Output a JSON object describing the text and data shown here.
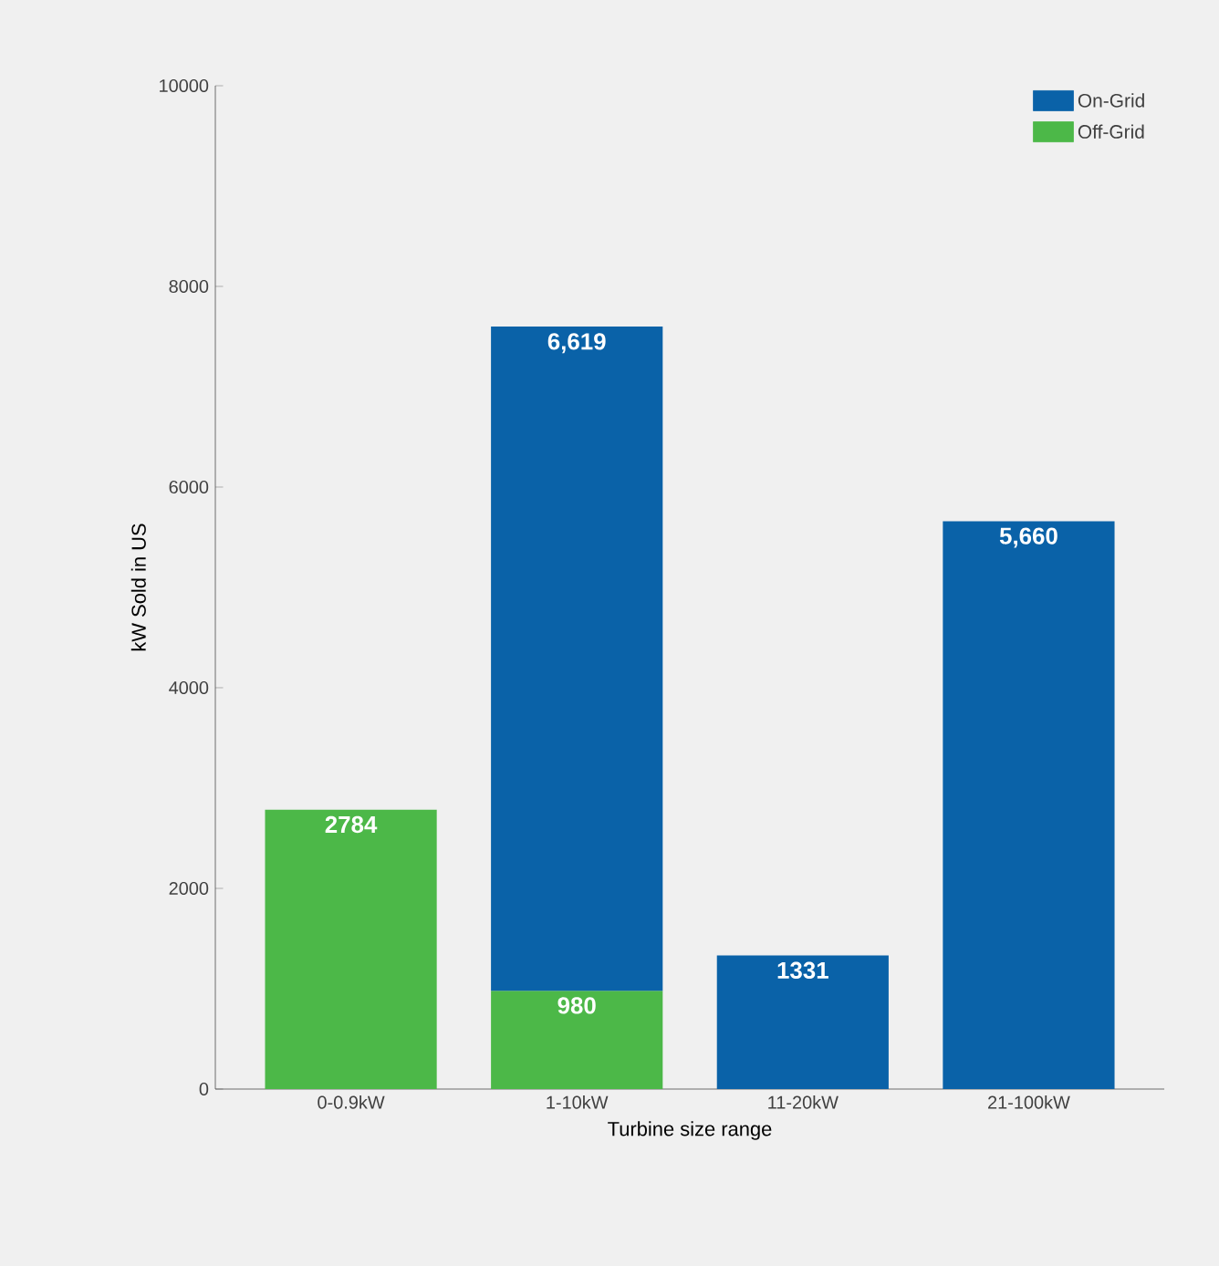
{
  "chart_data": {
    "type": "bar",
    "stacked": true,
    "categories": [
      "0-0.9kW",
      "1-10kW",
      "11-20kW",
      "21-100kW"
    ],
    "series": [
      {
        "name": "Off-Grid",
        "color": "#4cb848",
        "values": [
          2784,
          980,
          null,
          null
        ],
        "value_labels": [
          "2784",
          "980",
          null,
          null
        ]
      },
      {
        "name": "On-Grid",
        "color": "#0a62a8",
        "values": [
          null,
          6619,
          1331,
          5660
        ],
        "value_labels": [
          null,
          "6,619",
          "1331",
          "5,660"
        ]
      }
    ],
    "xlabel": "Turbine size range",
    "ylabel": "kW Sold in US",
    "ylim": [
      0,
      10000
    ],
    "yticks": [
      0,
      2000,
      4000,
      6000,
      8000,
      10000
    ],
    "legend": "top right"
  }
}
